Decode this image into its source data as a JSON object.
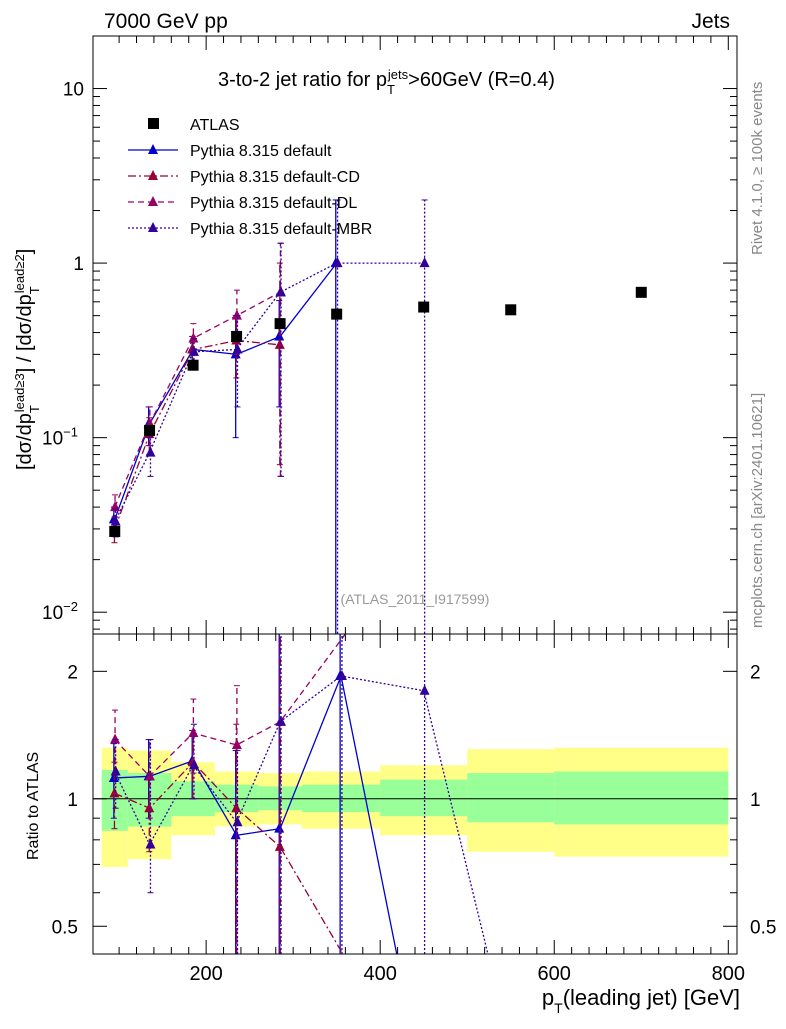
{
  "header": {
    "left": "7000 GeV pp",
    "right": "Jets"
  },
  "side_labels": {
    "rivet": "Rivet 4.1.0, ≥ 100k events",
    "mcplots": "mcplots.cern.ch [arXiv:2401.10621]"
  },
  "watermark": "(ATLAS_2011_I917599)",
  "chart_data": [
    {
      "type": "scatter",
      "title": "3-to-2 jet ratio for p_T^jets >60GeV (R=0.4)",
      "xlabel": "p_T(leading jet) [GeV]",
      "ylabel": "[dσ/dp_T^lead≥3] / [dσ/dp_T^lead≥2]",
      "yscale": "log",
      "xlim": [
        70,
        810
      ],
      "ylim": [
        0.0075,
        20
      ],
      "x_ticks": [
        "200",
        "400",
        "600",
        "800"
      ],
      "y_ticks": [
        "10^-2",
        "10^-1",
        "1",
        "10"
      ],
      "reference": {
        "name": "ATLAS",
        "color": "#000000",
        "x": [
          95,
          135,
          185,
          235,
          285,
          350,
          450,
          550,
          700
        ],
        "y": [
          0.029,
          0.11,
          0.26,
          0.38,
          0.45,
          0.51,
          0.56,
          0.54,
          0.68
        ],
        "bins": [
          [
            80,
            110
          ],
          [
            110,
            160
          ],
          [
            160,
            210
          ],
          [
            210,
            260
          ],
          [
            260,
            310
          ],
          [
            310,
            400
          ],
          [
            400,
            500
          ],
          [
            500,
            600
          ],
          [
            600,
            800
          ]
        ]
      },
      "series": [
        {
          "name": "Pythia 8.315 default",
          "color": "#0000cc",
          "style": "solid",
          "x": [
            95,
            135,
            185,
            235,
            285,
            350
          ],
          "y": [
            0.034,
            0.12,
            0.32,
            0.3,
            0.38,
            1.0
          ],
          "err_lo": [
            0.028,
            0.09,
            0.26,
            0.1,
            0.15,
            0.004
          ],
          "err_hi": [
            0.04,
            0.15,
            0.38,
            0.5,
            0.61,
            2.3
          ]
        },
        {
          "name": "Pythia 8.315 default-CD",
          "color": "#990033",
          "style": "dashdot",
          "x": [
            95,
            135,
            185,
            235,
            285
          ],
          "y": [
            0.03,
            0.105,
            0.32,
            0.36,
            0.34
          ],
          "err_lo": [
            0.025,
            0.08,
            0.26,
            0.22,
            0.07
          ],
          "err_hi": [
            0.035,
            0.13,
            0.38,
            0.5,
            1.0
          ]
        },
        {
          "name": "Pythia 8.315 default-DL",
          "color": "#990066",
          "style": "dashed",
          "x": [
            95,
            135,
            185,
            235,
            285
          ],
          "y": [
            0.04,
            0.12,
            0.37,
            0.5,
            0.68
          ],
          "err_lo": [
            0.033,
            0.09,
            0.3,
            0.3,
            0.06
          ],
          "err_hi": [
            0.047,
            0.15,
            0.45,
            0.7,
            1.3
          ]
        },
        {
          "name": "Pythia 8.315 default-MBR",
          "color": "#330099",
          "style": "dotted",
          "x": [
            95,
            135,
            185,
            235,
            285,
            350,
            450
          ],
          "y": [
            0.033,
            0.082,
            0.31,
            0.32,
            0.68,
            1.0,
            1.0
          ],
          "err_lo": [
            0.027,
            0.06,
            0.25,
            0.15,
            0.06,
            0.004,
            0.004
          ],
          "err_hi": [
            0.039,
            0.1,
            0.37,
            0.5,
            1.3,
            2.3,
            2.3
          ]
        }
      ]
    },
    {
      "type": "scatter",
      "title": "Ratio to ATLAS",
      "ylabel": "Ratio to ATLAS",
      "xlabel": "p_T(leading jet) [GeV]",
      "yscale": "log",
      "xlim": [
        70,
        810
      ],
      "ylim": [
        0.43,
        2.45
      ],
      "y_ticks": [
        "0.5",
        "1",
        "2"
      ],
      "band_stat": [
        [
          0.84,
          1.17
        ],
        [
          0.86,
          1.15
        ],
        [
          0.91,
          1.1
        ],
        [
          0.93,
          1.08
        ],
        [
          0.94,
          1.07
        ],
        [
          0.93,
          1.08
        ],
        [
          0.91,
          1.11
        ],
        [
          0.88,
          1.15
        ],
        [
          0.87,
          1.16
        ]
      ],
      "band_total": [
        [
          0.69,
          1.32
        ],
        [
          0.72,
          1.3
        ],
        [
          0.82,
          1.22
        ],
        [
          0.86,
          1.16
        ],
        [
          0.87,
          1.15
        ],
        [
          0.85,
          1.16
        ],
        [
          0.82,
          1.2
        ],
        [
          0.75,
          1.31
        ],
        [
          0.73,
          1.32
        ]
      ],
      "series": [
        {
          "name": "Pythia 8.315 default",
          "color": "#0000cc",
          "style": "solid",
          "x": [
            95,
            135,
            185,
            235,
            285,
            355,
            420
          ],
          "y": [
            1.12,
            1.13,
            1.23,
            0.82,
            0.85,
            1.95,
            0.42
          ],
          "err_lo": [
            0.9,
            0.9,
            1.0,
            0.43,
            0.43,
            0.43,
            null
          ],
          "err_hi": [
            1.35,
            1.38,
            1.45,
            1.3,
            2.45,
            2.45,
            null
          ]
        },
        {
          "name": "Pythia 8.315 default-CD",
          "color": "#990033",
          "style": "dashdot",
          "x": [
            95,
            135,
            185,
            235,
            285,
            360
          ],
          "y": [
            1.03,
            0.95,
            1.22,
            0.95,
            0.77,
            0.42
          ],
          "err_lo": [
            0.85,
            0.75,
            1.0,
            0.43,
            0.43,
            null
          ],
          "err_hi": [
            1.22,
            1.15,
            1.45,
            1.5,
            2.45,
            null
          ]
        },
        {
          "name": "Pythia 8.315 default-DL",
          "color": "#990066",
          "style": "dashed",
          "x": [
            95,
            135,
            185,
            235,
            285,
            360
          ],
          "y": [
            1.38,
            1.13,
            1.43,
            1.34,
            1.52,
            2.45
          ],
          "err_lo": [
            1.15,
            0.9,
            1.15,
            0.43,
            0.43,
            null
          ],
          "err_hi": [
            1.62,
            1.38,
            1.72,
            1.85,
            2.45,
            null
          ]
        },
        {
          "name": "Pythia 8.315 default-MBR",
          "color": "#330099",
          "style": "dotted",
          "x": [
            95,
            135,
            185,
            235,
            285,
            355,
            450,
            525
          ],
          "y": [
            1.16,
            0.78,
            1.2,
            0.88,
            1.52,
            1.95,
            1.8,
            0.42
          ],
          "err_lo": [
            0.95,
            0.6,
            1.0,
            0.43,
            0.43,
            0.43,
            0.43,
            null
          ],
          "err_hi": [
            1.38,
            1.38,
            1.5,
            1.3,
            2.45,
            2.45,
            2.45,
            null
          ]
        }
      ]
    }
  ]
}
